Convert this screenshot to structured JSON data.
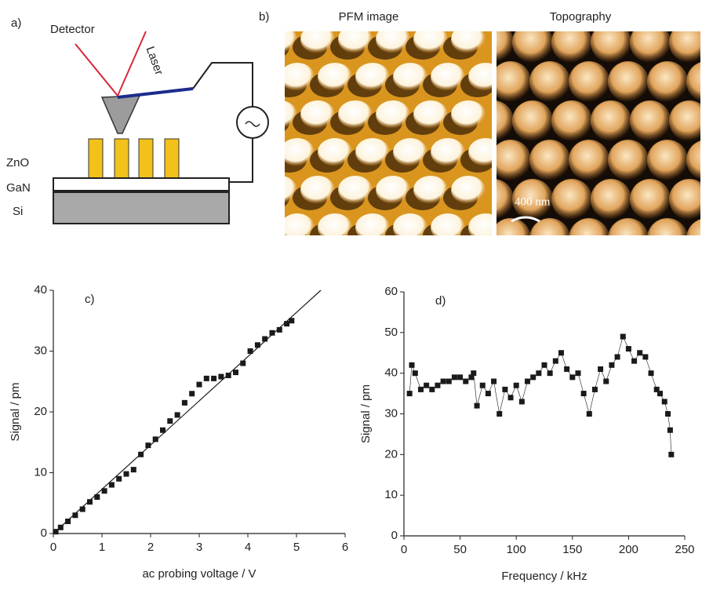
{
  "figure_a": {
    "label": "a)",
    "detector": "Detector",
    "laser": "Laser",
    "layers": [
      "ZnO",
      "GaN",
      "Si"
    ]
  },
  "figure_b": {
    "label": "b)",
    "panels": [
      "PFM image",
      "Topography"
    ],
    "scale_bar": "400 nm"
  },
  "chart_data": [
    {
      "type": "scatter",
      "label": "c)",
      "x_label": "ac probing voltage / V",
      "y_label": "Signal / pm",
      "xlim": [
        0,
        6
      ],
      "ylim": [
        0,
        40
      ],
      "xticks": [
        0,
        1,
        2,
        3,
        4,
        5,
        6
      ],
      "yticks": [
        0,
        10,
        20,
        30,
        40
      ],
      "series": [
        {
          "color": "#1a1a1a",
          "x": [
            0.05,
            0.15,
            0.3,
            0.45,
            0.6,
            0.75,
            0.9,
            1.05,
            1.2,
            1.35,
            1.5,
            1.65,
            1.8,
            1.95,
            2.1,
            2.25,
            2.4,
            2.55,
            2.7,
            2.85,
            3.0,
            3.15,
            3.3,
            3.45,
            3.6,
            3.75,
            3.9,
            4.05,
            4.2,
            4.35,
            4.5,
            4.65,
            4.8,
            4.9
          ],
          "values": [
            0.3,
            1,
            2,
            3,
            4,
            5.2,
            6,
            7,
            8,
            9,
            9.8,
            10.5,
            13,
            14.5,
            15.5,
            17,
            18.5,
            19.5,
            21.5,
            23,
            24.5,
            25.5,
            25.5,
            25.8,
            26,
            26.5,
            28,
            30,
            31,
            32,
            33,
            33.5,
            34.5,
            35
          ]
        },
        {
          "color": "#1a1a1a",
          "style": "line",
          "x": [
            0,
            5.5
          ],
          "values": [
            0,
            40
          ]
        }
      ]
    },
    {
      "type": "line",
      "label": "d)",
      "x_label": "Frequency / kHz",
      "y_label": "Signal / pm",
      "xlim": [
        0,
        250
      ],
      "ylim": [
        0,
        60
      ],
      "xticks": [
        0,
        50,
        100,
        150,
        200,
        250
      ],
      "yticks": [
        0,
        10,
        20,
        30,
        40,
        50,
        60
      ],
      "markers": true,
      "series": [
        {
          "color": "#1a1a1a",
          "x": [
            5,
            7,
            10,
            15,
            20,
            25,
            30,
            35,
            40,
            45,
            50,
            55,
            60,
            62,
            65,
            70,
            75,
            80,
            85,
            90,
            95,
            100,
            105,
            110,
            115,
            120,
            125,
            130,
            135,
            140,
            145,
            150,
            155,
            160,
            165,
            170,
            175,
            180,
            185,
            190,
            195,
            200,
            205,
            210,
            215,
            220,
            225,
            228,
            232,
            235,
            237,
            238
          ],
          "values": [
            35,
            42,
            40,
            36,
            37,
            36,
            37,
            38,
            38,
            39,
            39,
            38,
            39,
            40,
            32,
            37,
            35,
            38,
            30,
            36,
            34,
            37,
            33,
            38,
            39,
            40,
            42,
            40,
            43,
            45,
            41,
            39,
            40,
            35,
            30,
            36,
            41,
            38,
            42,
            44,
            49,
            46,
            43,
            45,
            44,
            40,
            36,
            35,
            33,
            30,
            26,
            20
          ]
        }
      ]
    }
  ]
}
